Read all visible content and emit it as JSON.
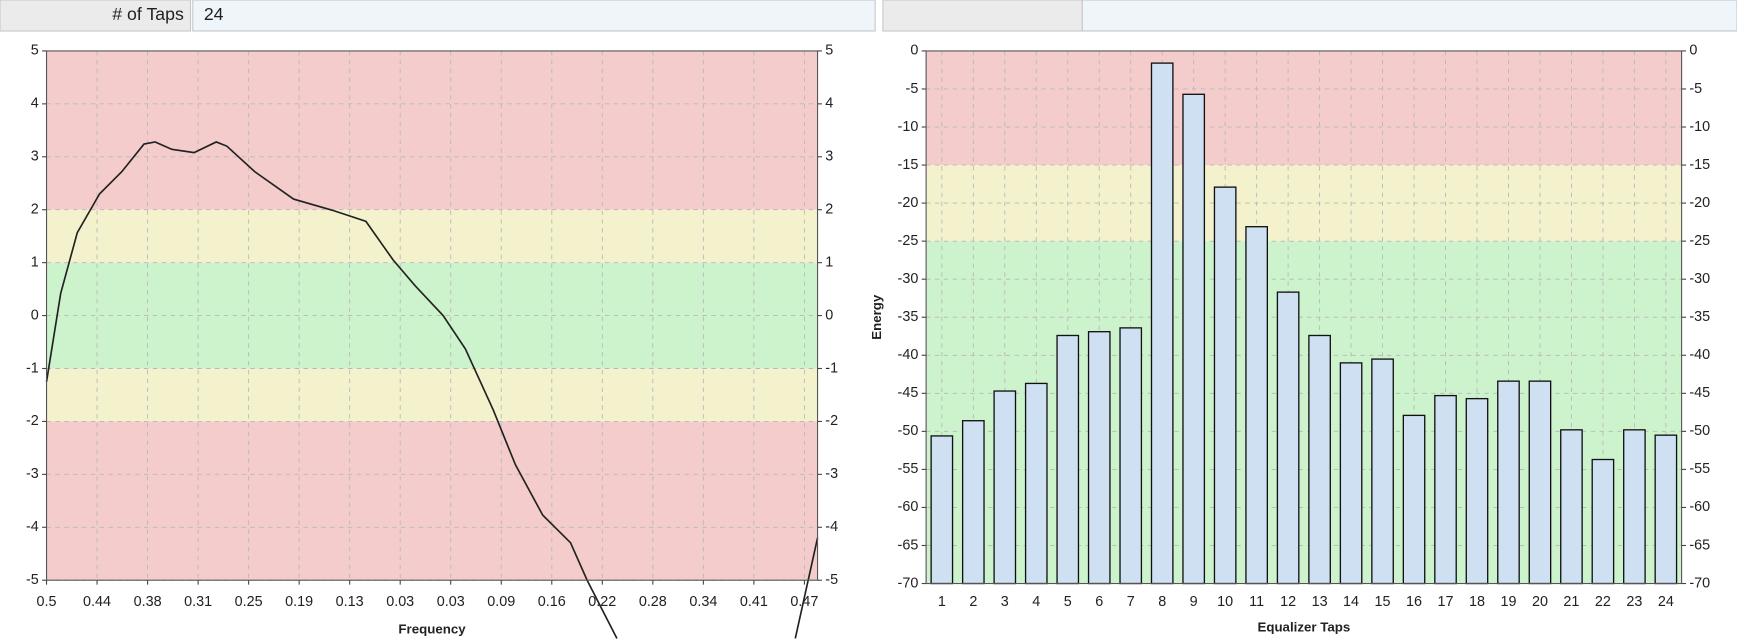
{
  "header": {
    "label": "# of Taps",
    "value": "24"
  },
  "chart_data": [
    {
      "type": "line",
      "x_label": "Frequency",
      "x": [
        0,
        0.28,
        0.61,
        1.05,
        1.49,
        1.93,
        2.15,
        2.48,
        2.92,
        3.36,
        3.57,
        4.12,
        4.89,
        5.66,
        6.32,
        6.86,
        7.3,
        7.85,
        8.29,
        8.84,
        9.28,
        9.82,
        10.37,
        10.7,
        11.29,
        12,
        14.82,
        15.26
      ],
      "series": [
        {
          "color": "#222222",
          "values": [
            -1.25,
            0.42,
            1.57,
            2.3,
            2.72,
            3.24,
            3.28,
            3.14,
            3.08,
            3.28,
            3.2,
            2.72,
            2.2,
            1.99,
            1.78,
            1.05,
            0.56,
            0,
            -0.63,
            -1.78,
            -2.82,
            -3.77,
            -4.29,
            -5.0,
            -6.1,
            null,
            -6.1,
            -4.2
          ]
        }
      ],
      "xlim": [
        0,
        15.26
      ],
      "xticks": [
        {
          "value": 0,
          "label": "0.5"
        },
        {
          "value": 1,
          "label": "0.44"
        },
        {
          "value": 2,
          "label": "0.38"
        },
        {
          "value": 3,
          "label": "0.31"
        },
        {
          "value": 4,
          "label": "0.25"
        },
        {
          "value": 5,
          "label": "0.19"
        },
        {
          "value": 6,
          "label": "0.13"
        },
        {
          "value": 7,
          "label": "0.03"
        },
        {
          "value": 8,
          "label": "0.03"
        },
        {
          "value": 9,
          "label": "0.09"
        },
        {
          "value": 10,
          "label": "0.16"
        },
        {
          "value": 11,
          "label": "0.22"
        },
        {
          "value": 12,
          "label": "0.28"
        },
        {
          "value": 13,
          "label": "0.34"
        },
        {
          "value": 14,
          "label": "0.41"
        },
        {
          "value": 15,
          "label": "0.47"
        }
      ],
      "ylim": [
        -5,
        5
      ],
      "yticks": [
        5,
        4,
        3,
        2,
        1,
        0,
        -1,
        -2,
        -3,
        -4,
        -5
      ],
      "bands": [
        {
          "from": 2,
          "to": 5,
          "color": "#f4cccc"
        },
        {
          "from": 1,
          "to": 2,
          "color": "#f4f2cc"
        },
        {
          "from": -1,
          "to": 1,
          "color": "#cdf3cd"
        },
        {
          "from": -2,
          "to": -1,
          "color": "#f4f2cc"
        },
        {
          "from": -5,
          "to": -2,
          "color": "#f4cccc"
        }
      ],
      "grid": true
    },
    {
      "type": "bar",
      "x_label": "Equalizer Taps",
      "y_label": "Energy",
      "categories": [
        "1",
        "2",
        "3",
        "4",
        "5",
        "6",
        "7",
        "8",
        "9",
        "10",
        "11",
        "12",
        "13",
        "14",
        "15",
        "16",
        "17",
        "18",
        "19",
        "20",
        "21",
        "22",
        "23",
        "24"
      ],
      "values": [
        -50.6,
        -48.6,
        -44.7,
        -43.7,
        -37.4,
        -36.9,
        -36.4,
        -1.6,
        -5.7,
        -17.9,
        -23.1,
        -31.7,
        -37.4,
        -41,
        -40.5,
        -47.9,
        -45.3,
        -45.7,
        -43.4,
        -43.4,
        -49.8,
        -53.7,
        -49.8,
        -50.5
      ],
      "color": "#cfe0f3",
      "ylim": [
        -70,
        0
      ],
      "yticks": [
        0,
        -5,
        -10,
        -15,
        -20,
        -25,
        -30,
        -35,
        -40,
        -45,
        -50,
        -55,
        -60,
        -65,
        -70
      ],
      "bands": [
        {
          "from": -15,
          "to": 0,
          "color": "#f4cccc"
        },
        {
          "from": -25,
          "to": -15,
          "color": "#f4f2cc"
        },
        {
          "from": -70,
          "to": -25,
          "color": "#cdf3cd"
        }
      ],
      "grid": true
    }
  ]
}
